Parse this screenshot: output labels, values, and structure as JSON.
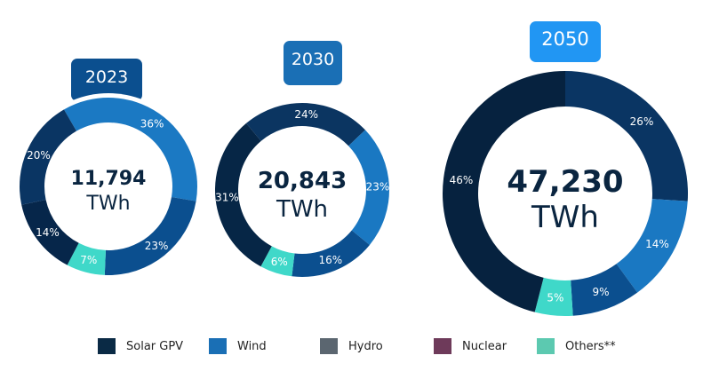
{
  "chart_data": {
    "type": "pie",
    "unit": "TWh",
    "charts": [
      {
        "year": "2023",
        "total": "11,794",
        "unit": "TWh",
        "start_deg": -30,
        "slices": [
          {
            "label": "36%",
            "value": 36,
            "color": "#1b79c3"
          },
          {
            "label": "23%",
            "value": 23,
            "color": "#0b4f8f"
          },
          {
            "label": "7%",
            "value": 7,
            "color": "#3fd8c9"
          },
          {
            "label": "14%",
            "value": 14,
            "color": "#06264a"
          },
          {
            "label": "20%",
            "value": 20,
            "color": "#0a3563"
          }
        ],
        "tab_color": "#0b4f8f"
      },
      {
        "year": "2030",
        "total": "20,843",
        "unit": "TWh",
        "start_deg": -40,
        "slices": [
          {
            "label": "24%",
            "value": 24,
            "color": "#0b3561"
          },
          {
            "label": "23%",
            "value": 23,
            "color": "#1a78c2"
          },
          {
            "label": "16%",
            "value": 16,
            "color": "#0b4f8f"
          },
          {
            "label": "6%",
            "value": 6,
            "color": "#3fd8c9"
          },
          {
            "label": "31%",
            "value": 31,
            "color": "#062646"
          }
        ],
        "tab_color": "#1a6fb5"
      },
      {
        "year": "2050",
        "total": "47,230",
        "unit": "TWh",
        "start_deg": 0,
        "slices": [
          {
            "label": "26%",
            "value": 26,
            "color": "#0a3563"
          },
          {
            "label": "14%",
            "value": 14,
            "color": "#1a78c2"
          },
          {
            "label": "9%",
            "value": 9,
            "color": "#0b4f8f"
          },
          {
            "label": "5%",
            "value": 5,
            "color": "#3fd8c9"
          },
          {
            "label": "46%",
            "value": 46,
            "color": "#06223f"
          }
        ],
        "tab_color": "#2196f3"
      }
    ],
    "legend": [
      {
        "label": "Solar GPV",
        "color": "#0a2a45"
      },
      {
        "label": "Wind",
        "color": "#1a6fb5"
      },
      {
        "label": "Hydro",
        "color": "#5b6670"
      },
      {
        "label": "Nuclear",
        "color": "#6e3a5a"
      },
      {
        "label": "Others**",
        "color": "#5cc9b0"
      }
    ],
    "legend_position": "bottom"
  }
}
